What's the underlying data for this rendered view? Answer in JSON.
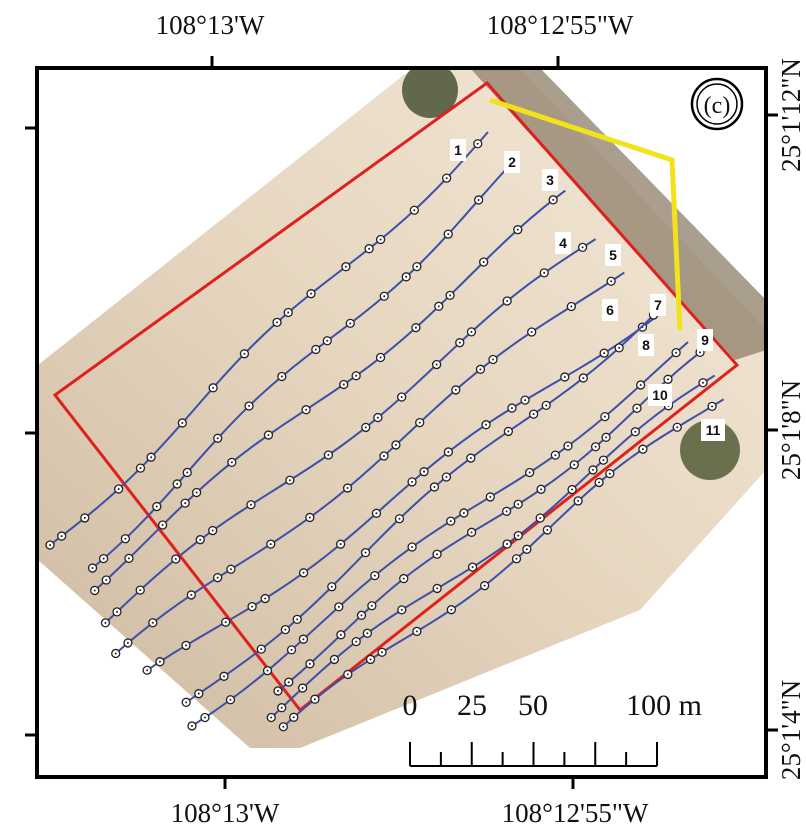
{
  "map": {
    "panel_label": "(c)",
    "top_labels": [
      "108°13'W",
      "108°12'55\"W"
    ],
    "bottom_labels": [
      "108°13'W",
      "108°12'55\"W"
    ],
    "right_labels": [
      "25°1'12\"N",
      "25°1'8\"N",
      "25°1'4\"N"
    ],
    "transect_labels": [
      "1",
      "2",
      "3",
      "4",
      "5",
      "6",
      "7",
      "8",
      "9",
      "10",
      "11"
    ],
    "scale_labels": [
      "0",
      "25",
      "50",
      "100 m"
    ]
  }
}
